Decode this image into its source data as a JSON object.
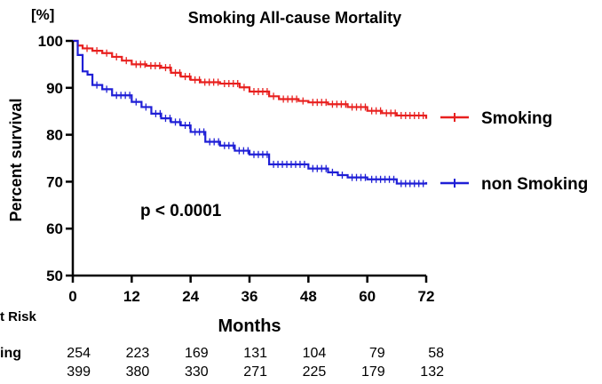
{
  "chart_data": {
    "type": "line",
    "title": "Smoking All-cause Mortality",
    "y_unit_label": "[%]",
    "ylabel": "Percent survival",
    "xlabel": "Months",
    "xlim": [
      0,
      72
    ],
    "ylim": [
      50,
      100
    ],
    "x_ticks": [
      "0",
      "12",
      "24",
      "36",
      "48",
      "60",
      "72"
    ],
    "y_ticks": [
      "50",
      "60",
      "70",
      "80",
      "90",
      "100"
    ],
    "annotation": "p < 0.0001",
    "grid": false,
    "legend_position": "right",
    "series": [
      {
        "name": "Smoking",
        "color": "#e8201f",
        "points": [
          [
            0,
            100
          ],
          [
            1,
            99
          ],
          [
            2,
            98.4
          ],
          [
            4,
            97.9
          ],
          [
            6,
            97.4
          ],
          [
            8,
            96.6
          ],
          [
            10,
            95.8
          ],
          [
            12,
            95
          ],
          [
            15,
            94.7
          ],
          [
            18,
            94.3
          ],
          [
            20,
            93.2
          ],
          [
            22,
            92.4
          ],
          [
            24,
            91.7
          ],
          [
            26,
            91.2
          ],
          [
            30,
            90.9
          ],
          [
            34,
            90.1
          ],
          [
            36,
            89.2
          ],
          [
            40,
            88.2
          ],
          [
            42,
            87.6
          ],
          [
            46,
            87.2
          ],
          [
            48,
            86.9
          ],
          [
            52,
            86.5
          ],
          [
            56,
            85.9
          ],
          [
            60,
            85.1
          ],
          [
            63,
            84.6
          ],
          [
            66,
            84.1
          ],
          [
            72,
            83.4
          ]
        ]
      },
      {
        "name": "non Smoking",
        "color": "#1f1fd6",
        "points": [
          [
            0,
            100
          ],
          [
            1,
            97
          ],
          [
            2,
            93.5
          ],
          [
            3,
            92.8
          ],
          [
            4,
            90.6
          ],
          [
            6,
            89.7
          ],
          [
            8,
            88.4
          ],
          [
            12,
            87
          ],
          [
            14,
            85.9
          ],
          [
            16,
            84.5
          ],
          [
            18,
            83.5
          ],
          [
            20,
            82.7
          ],
          [
            22,
            82
          ],
          [
            24,
            80.6
          ],
          [
            27,
            78.5
          ],
          [
            30,
            77.7
          ],
          [
            33,
            76.6
          ],
          [
            36,
            75.8
          ],
          [
            40,
            73.7
          ],
          [
            48,
            72.8
          ],
          [
            52,
            72
          ],
          [
            54,
            71.4
          ],
          [
            56,
            70.9
          ],
          [
            60,
            70.5
          ],
          [
            66,
            69.6
          ],
          [
            72,
            69.9
          ]
        ]
      }
    ],
    "at_risk": {
      "label": "t Risk",
      "rows": [
        {
          "label": "ing",
          "values": [
            "254",
            "223",
            "169",
            "131",
            "104",
            "79",
            "58"
          ]
        },
        {
          "label": "",
          "values": [
            "399",
            "380",
            "330",
            "271",
            "225",
            "179",
            "132"
          ]
        }
      ]
    }
  }
}
